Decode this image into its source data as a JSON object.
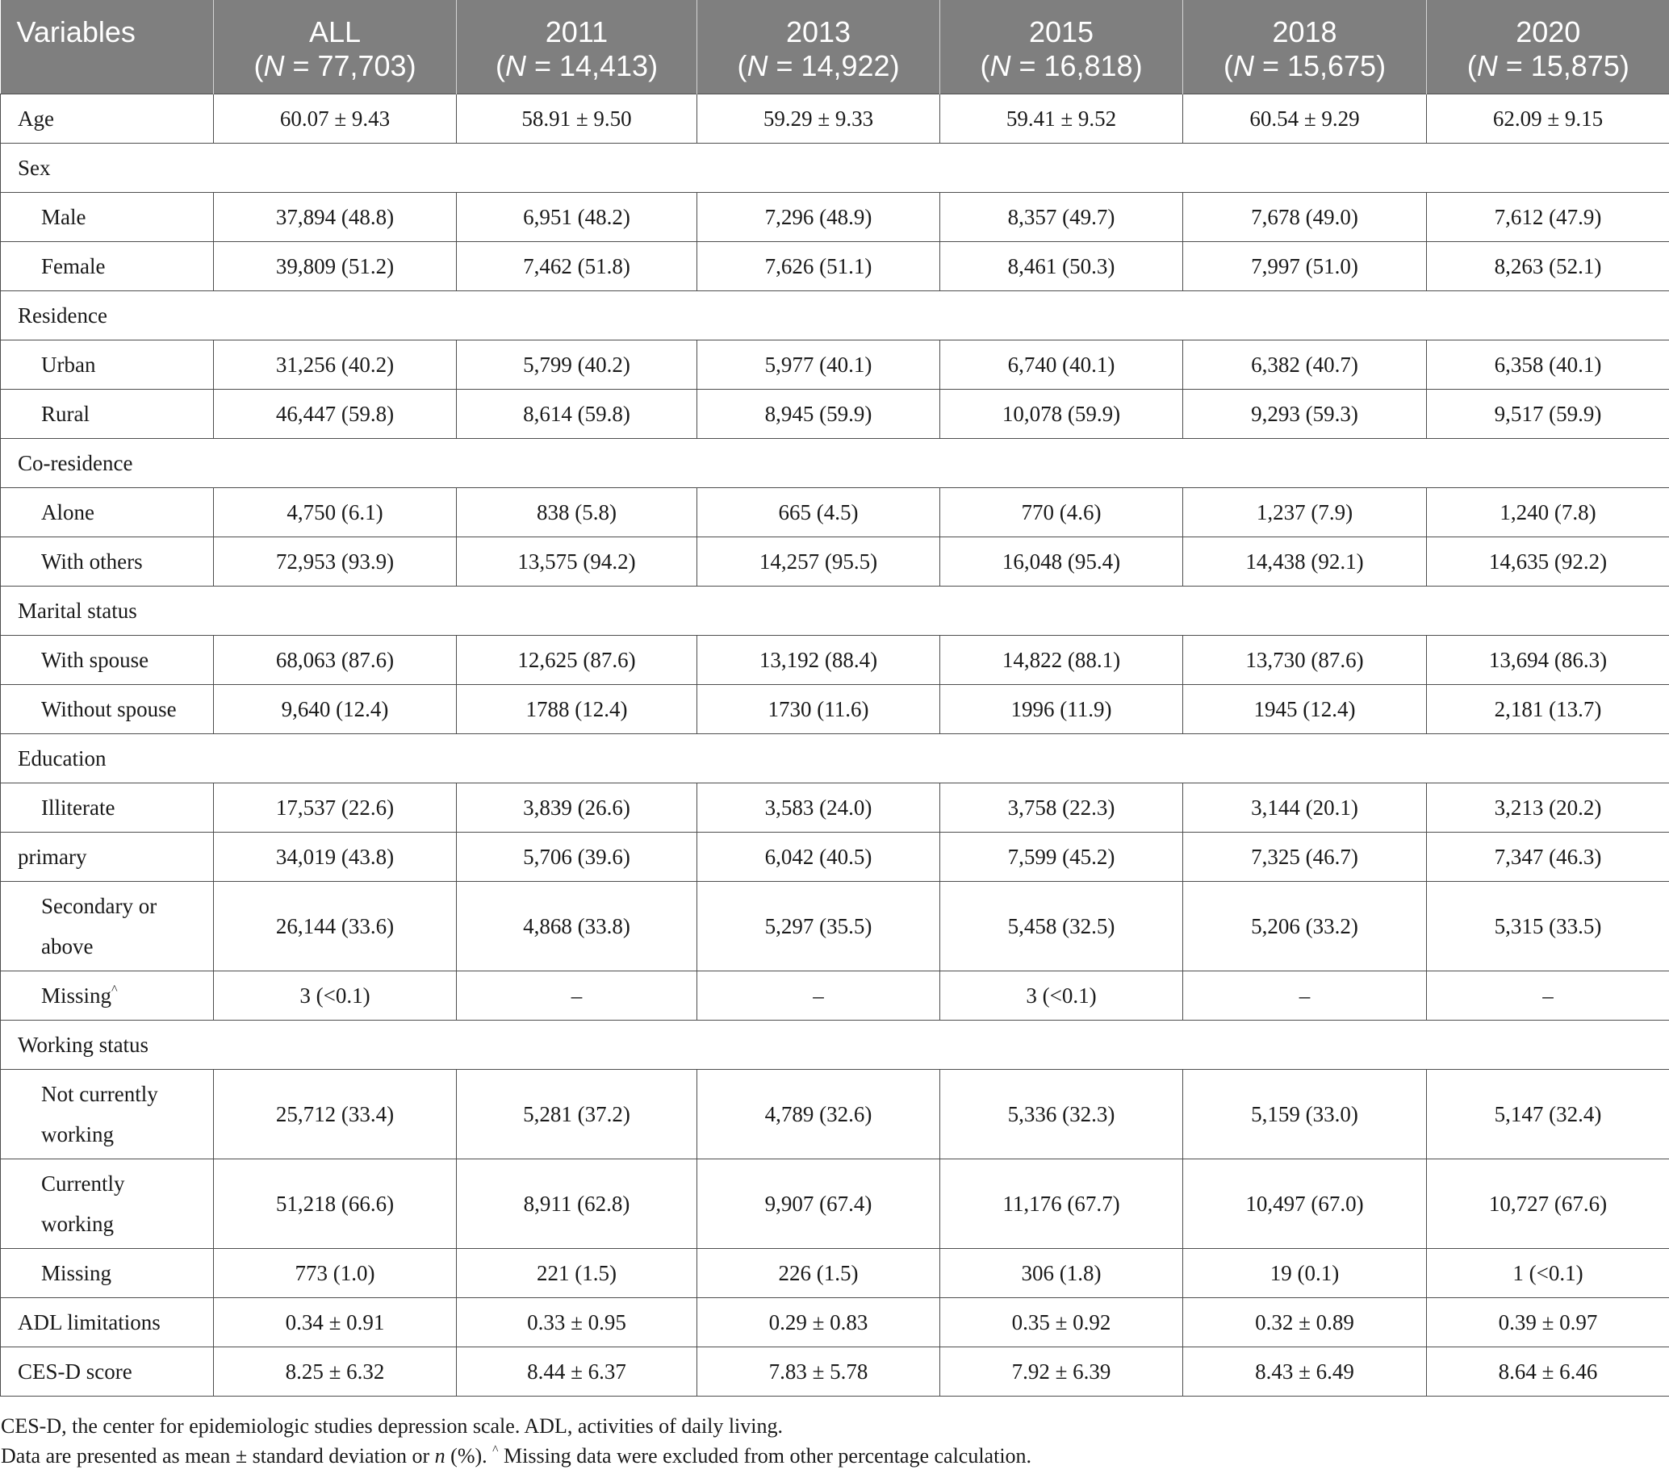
{
  "colors": {
    "header_background": "#7f7f7f",
    "header_text": "#ffffff",
    "grid_line": "#4d4d4d",
    "body_text": "#1a1a1a"
  },
  "table": {
    "header": {
      "variables_label": "Variables",
      "columns": [
        {
          "label": "ALL",
          "n_parts": [
            "(",
            "N",
            " = 77,703)"
          ]
        },
        {
          "label": "2011",
          "n_parts": [
            "(",
            "N",
            " = 14,413)"
          ]
        },
        {
          "label": "2013",
          "n_parts": [
            "(",
            "N",
            " = 14,922)"
          ]
        },
        {
          "label": "2015",
          "n_parts": [
            "(",
            "N",
            " = 16,818)"
          ]
        },
        {
          "label": "2018",
          "n_parts": [
            "(",
            "N",
            " = 15,675)"
          ]
        },
        {
          "label": "2020",
          "n_parts": [
            "(",
            "N",
            " = 15,875)"
          ]
        }
      ]
    },
    "rows": [
      {
        "type": "data",
        "level": 0,
        "label": "Age",
        "values": [
          "60.07 ± 9.43",
          "58.91 ± 9.50",
          "59.29 ± 9.33",
          "59.41 ± 9.52",
          "60.54 ± 9.29",
          "62.09 ± 9.15"
        ]
      },
      {
        "type": "section",
        "label": "Sex"
      },
      {
        "type": "data",
        "level": 1,
        "label": "Male",
        "values": [
          "37,894 (48.8)",
          "6,951 (48.2)",
          "7,296 (48.9)",
          "8,357 (49.7)",
          "7,678 (49.0)",
          "7,612 (47.9)"
        ]
      },
      {
        "type": "data",
        "level": 1,
        "label": "Female",
        "values": [
          "39,809 (51.2)",
          "7,462 (51.8)",
          "7,626 (51.1)",
          "8,461 (50.3)",
          "7,997 (51.0)",
          "8,263 (52.1)"
        ]
      },
      {
        "type": "section",
        "label": "Residence"
      },
      {
        "type": "data",
        "level": 1,
        "label": "Urban",
        "values": [
          "31,256 (40.2)",
          "5,799 (40.2)",
          "5,977 (40.1)",
          "6,740 (40.1)",
          "6,382 (40.7)",
          "6,358 (40.1)"
        ]
      },
      {
        "type": "data",
        "level": 1,
        "label": "Rural",
        "values": [
          "46,447 (59.8)",
          "8,614 (59.8)",
          "8,945 (59.9)",
          "10,078 (59.9)",
          "9,293 (59.3)",
          "9,517 (59.9)"
        ]
      },
      {
        "type": "section",
        "label": "Co-residence"
      },
      {
        "type": "data",
        "level": 1,
        "label": "Alone",
        "values": [
          "4,750 (6.1)",
          "838 (5.8)",
          "665 (4.5)",
          "770 (4.6)",
          "1,237 (7.9)",
          "1,240 (7.8)"
        ]
      },
      {
        "type": "data",
        "level": 1,
        "label": "With others",
        "values": [
          "72,953 (93.9)",
          "13,575 (94.2)",
          "14,257 (95.5)",
          "16,048 (95.4)",
          "14,438 (92.1)",
          "14,635 (92.2)"
        ]
      },
      {
        "type": "section",
        "label": "Marital status"
      },
      {
        "type": "data",
        "level": 1,
        "label": "With spouse",
        "values": [
          "68,063 (87.6)",
          "12,625 (87.6)",
          "13,192 (88.4)",
          "14,822 (88.1)",
          "13,730 (87.6)",
          "13,694 (86.3)"
        ]
      },
      {
        "type": "data",
        "level": 1,
        "label": "Without spouse",
        "values": [
          "9,640 (12.4)",
          "1788 (12.4)",
          "1730 (11.6)",
          "1996 (11.9)",
          "1945 (12.4)",
          "2,181 (13.7)"
        ]
      },
      {
        "type": "section",
        "label": "Education"
      },
      {
        "type": "data",
        "level": 1,
        "label": "Illiterate",
        "values": [
          "17,537 (22.6)",
          "3,839 (26.6)",
          "3,583 (24.0)",
          "3,758 (22.3)",
          "3,144 (20.1)",
          "3,213 (20.2)"
        ]
      },
      {
        "type": "data",
        "level": 0,
        "label": "primary",
        "values": [
          "34,019 (43.8)",
          "5,706 (39.6)",
          "6,042 (40.5)",
          "7,599 (45.2)",
          "7,325 (46.7)",
          "7,347 (46.3)"
        ]
      },
      {
        "type": "data",
        "level": 1,
        "label": "Secondary or above",
        "values": [
          "26,144 (33.6)",
          "4,868 (33.8)",
          "5,297 (35.5)",
          "5,458 (32.5)",
          "5,206 (33.2)",
          "5,315 (33.5)"
        ]
      },
      {
        "type": "data",
        "level": 1,
        "label": "Missing",
        "label_note": "^",
        "values": [
          "3 (<0.1)",
          "–",
          "–",
          "3 (<0.1)",
          "–",
          "–"
        ]
      },
      {
        "type": "section",
        "label": "Working status"
      },
      {
        "type": "data",
        "level": 1,
        "label": "Not currently working",
        "values": [
          "25,712 (33.4)",
          "5,281 (37.2)",
          "4,789 (32.6)",
          "5,336 (32.3)",
          "5,159 (33.0)",
          "5,147 (32.4)"
        ]
      },
      {
        "type": "data",
        "level": 1,
        "label": "Currently working",
        "values": [
          "51,218 (66.6)",
          "8,911 (62.8)",
          "9,907 (67.4)",
          "11,176 (67.7)",
          "10,497 (67.0)",
          "10,727 (67.6)"
        ]
      },
      {
        "type": "data",
        "level": 1,
        "label": "Missing",
        "values": [
          "773 (1.0)",
          "221 (1.5)",
          "226 (1.5)",
          "306 (1.8)",
          "19 (0.1)",
          "1 (<0.1)"
        ]
      },
      {
        "type": "data",
        "level": 0,
        "label": "ADL limitations",
        "values": [
          "0.34 ± 0.91",
          "0.33 ± 0.95",
          "0.29 ± 0.83",
          "0.35 ± 0.92",
          "0.32 ± 0.89",
          "0.39 ± 0.97"
        ]
      },
      {
        "type": "data",
        "level": 0,
        "label": "CES-D score",
        "values": [
          "8.25 ± 6.32",
          "8.44 ± 6.37",
          "7.83 ± 5.78",
          "7.92 ± 6.39",
          "8.43 ± 6.49",
          "8.64 ± 6.46"
        ]
      }
    ]
  },
  "footnotes": {
    "abbreviations": "CES-D, the center for epidemiologic studies depression scale. ADL, activities of daily living.",
    "presentation_parts": [
      "Data are presented as mean ± standard deviation or ",
      "n",
      " (%). ",
      "^",
      " Missing data were excluded from other percentage calculation."
    ]
  }
}
